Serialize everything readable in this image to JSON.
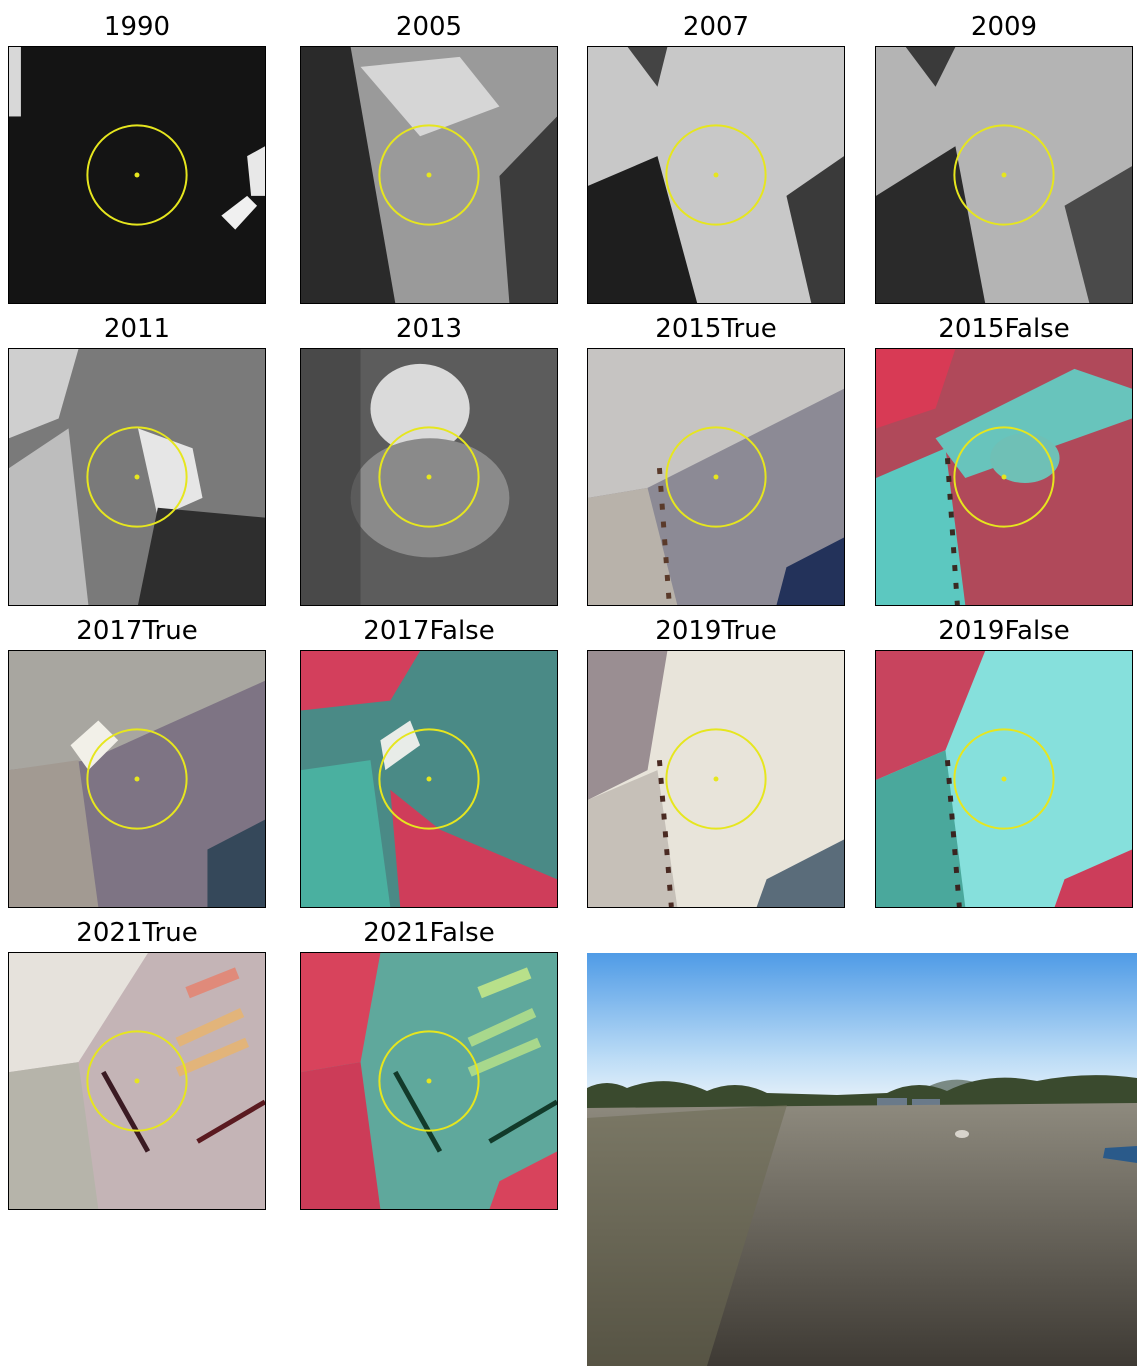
{
  "panels": [
    {
      "title": "1990",
      "style": "gray-dark"
    },
    {
      "title": "2005",
      "style": "gray-mid"
    },
    {
      "title": "2007",
      "style": "gray-light"
    },
    {
      "title": "2009",
      "style": "gray-soft"
    },
    {
      "title": "2011",
      "style": "gray-patchy"
    },
    {
      "title": "2013",
      "style": "gray-blur"
    },
    {
      "title": "2015True",
      "style": "true-color"
    },
    {
      "title": "2015False",
      "style": "false-color"
    },
    {
      "title": "2017True",
      "style": "true-color"
    },
    {
      "title": "2017False",
      "style": "false-color"
    },
    {
      "title": "2019True",
      "style": "true-bright"
    },
    {
      "title": "2019False",
      "style": "false-cyan"
    },
    {
      "title": "2021True",
      "style": "true-stripes"
    },
    {
      "title": "2021False",
      "style": "false-stripes"
    }
  ],
  "marker_color": "#e6e61e",
  "photo_label": "field-photo"
}
